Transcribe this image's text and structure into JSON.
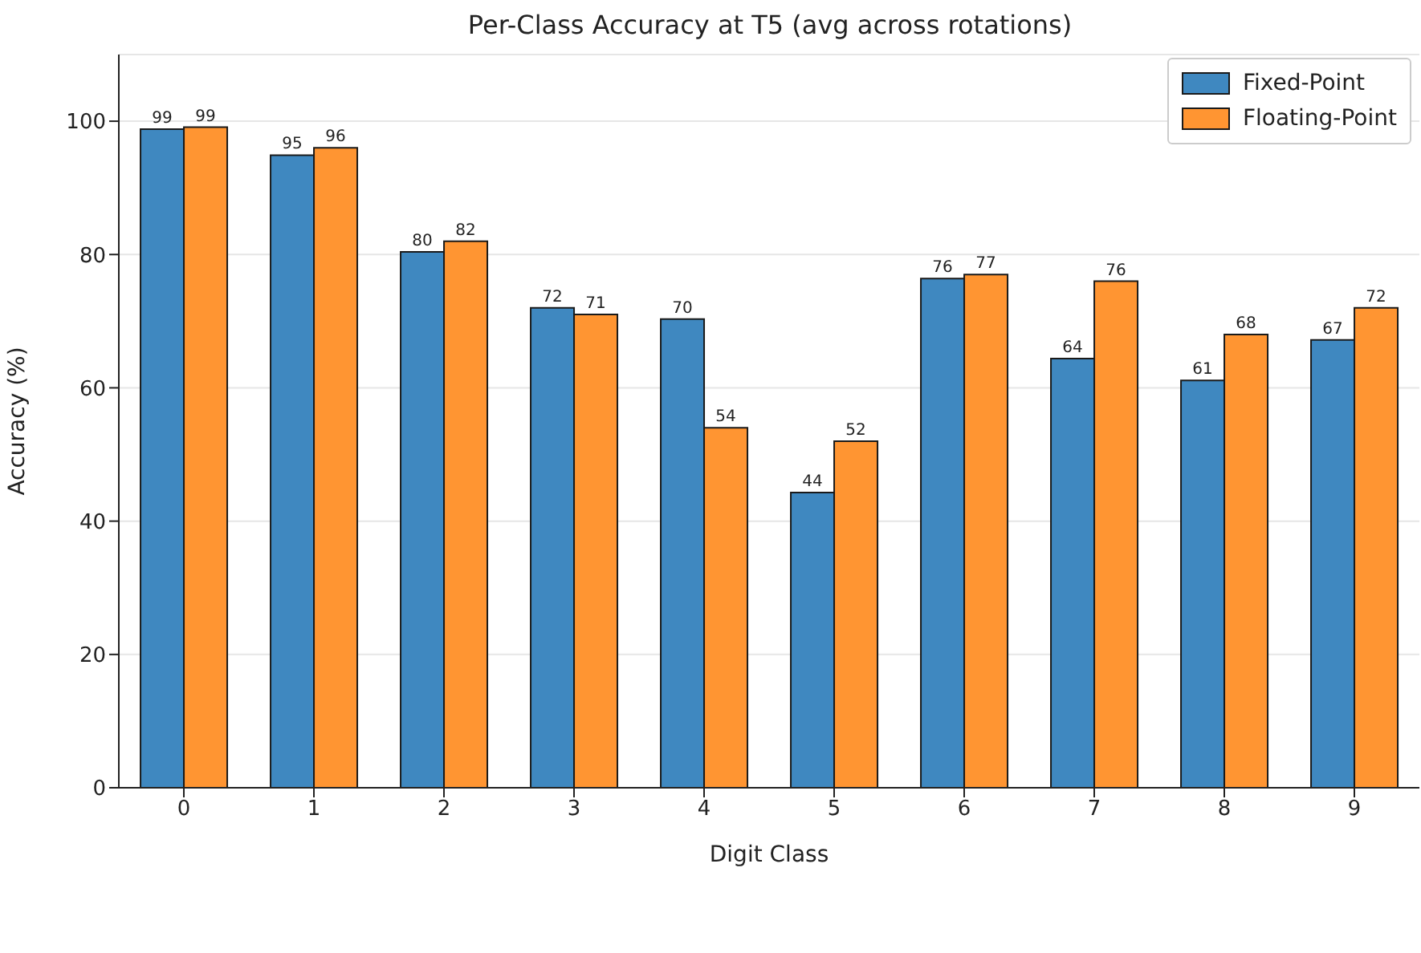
{
  "chart_data": {
    "type": "bar",
    "title": "Per-Class Accuracy at T5 (avg across rotations)",
    "xlabel": "Digit Class",
    "ylabel": "Accuracy (%)",
    "categories": [
      "0",
      "1",
      "2",
      "3",
      "4",
      "5",
      "6",
      "7",
      "8",
      "9"
    ],
    "series": [
      {
        "name": "Fixed-Point",
        "color": "#3f88c0",
        "values": [
          98.8,
          94.9,
          80.4,
          72.0,
          70.3,
          44.3,
          76.4,
          64.4,
          61.1,
          67.2
        ],
        "value_labels": [
          "99",
          "95",
          "80",
          "72",
          "70",
          "44",
          "76",
          "64",
          "61",
          "67"
        ]
      },
      {
        "name": "Floating-Point",
        "color": "#ff9532",
        "values": [
          99.1,
          96.0,
          82.0,
          71.0,
          54.0,
          52.0,
          77.0,
          76.0,
          68.0,
          72.0
        ],
        "value_labels": [
          "99",
          "96",
          "82",
          "71",
          "54",
          "52",
          "77",
          "76",
          "68",
          "72"
        ]
      }
    ],
    "ylim": [
      0,
      110
    ],
    "yticks": [
      0,
      20,
      40,
      60,
      80,
      100
    ],
    "grid": "y",
    "legend": "top right"
  }
}
